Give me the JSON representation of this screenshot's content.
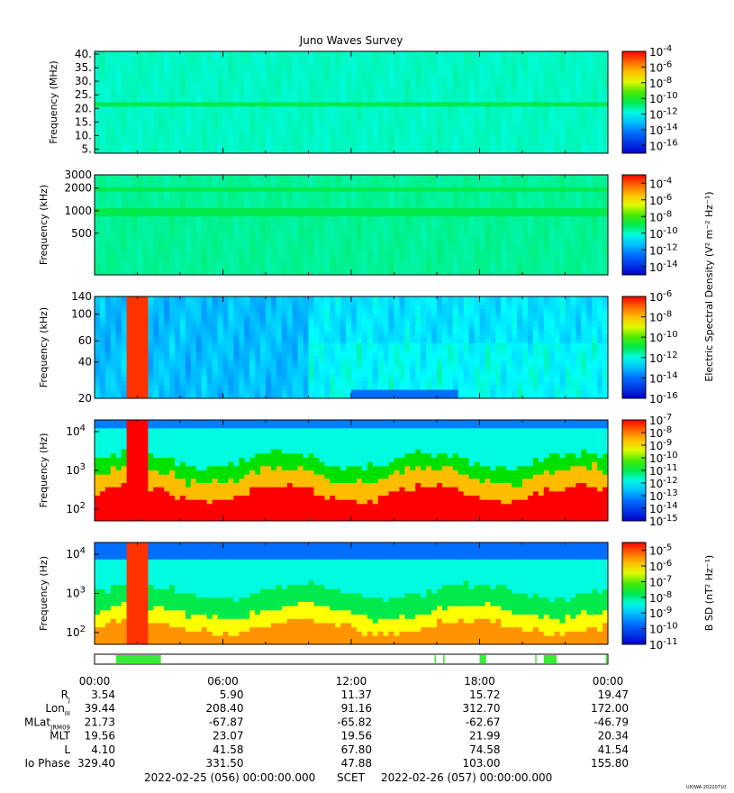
{
  "chart_data": {
    "type": "heatmap",
    "title": "Juno Waves Survey",
    "time_ticks": [
      "00:00",
      "06:00",
      "12:00",
      "18:00",
      "00:00"
    ],
    "panels": [
      {
        "ylabel": "Frequency (MHz)",
        "yscale": "linear",
        "ylim": [
          3.5,
          41
        ],
        "yticks": [
          "40.",
          "35.",
          "30.",
          "25.",
          "20.",
          "15.",
          "10.",
          "5."
        ],
        "ytick_values": [
          40,
          35,
          30,
          25,
          20,
          15,
          10,
          5
        ],
        "colorbar": {
          "exponents": [
            "-4",
            "-6",
            "-8",
            "-10",
            "-12",
            "-14",
            "-16"
          ],
          "range": [
            -17,
            -4
          ]
        }
      },
      {
        "ylabel": "Frequency (kHz)",
        "yscale": "log",
        "ylim": [
          140,
          3000
        ],
        "yticks": [
          "3000",
          "2000",
          "1000",
          "500"
        ],
        "ytick_values": [
          3000,
          2000,
          1000,
          500
        ],
        "colorbar": {
          "exponents": [
            "-4",
            "-6",
            "-8",
            "-10",
            "-12",
            "-14"
          ],
          "range": [
            -15,
            -3
          ]
        }
      },
      {
        "ylabel": "Frequency (kHz)",
        "yscale": "log",
        "ylim": [
          20,
          140
        ],
        "yticks": [
          "140",
          "100",
          "60",
          "40",
          "20"
        ],
        "ytick_values": [
          140,
          100,
          60,
          40,
          20
        ],
        "colorbar": {
          "exponents": [
            "-6",
            "-8",
            "-10",
            "-12",
            "-14",
            "-16"
          ],
          "range": [
            -16,
            -6
          ]
        }
      },
      {
        "ylabel": "Frequency (Hz)",
        "yscale": "log",
        "ylim": [
          50,
          20000
        ],
        "yticks": [
          {
            "base": "10",
            "exp": "4"
          },
          {
            "base": "10",
            "exp": "3"
          },
          {
            "base": "10",
            "exp": "2"
          }
        ],
        "ytick_values": [
          10000,
          1000,
          100
        ],
        "colorbar": {
          "exponents": [
            "-7",
            "-8",
            "-9",
            "-10",
            "-11",
            "-12",
            "-13",
            "-14",
            "-15"
          ],
          "range": [
            -15,
            -7
          ]
        }
      },
      {
        "ylabel": "Frequency (Hz)",
        "yscale": "log",
        "ylim": [
          50,
          20000
        ],
        "yticks": [
          {
            "base": "10",
            "exp": "4"
          },
          {
            "base": "10",
            "exp": "3"
          },
          {
            "base": "10",
            "exp": "2"
          }
        ],
        "ytick_values": [
          10000,
          1000,
          100
        ],
        "colorbar": {
          "exponents": [
            "-5",
            "-6",
            "-7",
            "-8",
            "-9",
            "-10",
            "-11"
          ],
          "range": [
            -11,
            -4.5
          ]
        }
      }
    ],
    "colorbar_labels": {
      "electric": "Electric Spectral Density (V² m⁻² Hz⁻¹)",
      "magnetic": "B SD (nT² Hz⁻¹)"
    },
    "mode_strip": {
      "color": "#33ee33",
      "segments_hours": [
        [
          1.0,
          3.1
        ],
        [
          15.9,
          15.95
        ],
        [
          16.3,
          16.35
        ],
        [
          18.0,
          18.3
        ],
        [
          20.6,
          20.65
        ],
        [
          21.0,
          21.6
        ],
        [
          23.9,
          23.95
        ]
      ]
    },
    "ephemeris": {
      "rows": [
        {
          "label": "R",
          "sub": "J",
          "values": [
            "3.54",
            "5.90",
            "11.37",
            "15.72",
            "19.47"
          ]
        },
        {
          "label": "Lon",
          "sub": "III",
          "values": [
            "39.44",
            "208.40",
            "91.16",
            "312.70",
            "172.00"
          ]
        },
        {
          "label": "MLat",
          "sub": "JRM09",
          "values": [
            "21.73",
            "-67.87",
            "-65.82",
            "-62.67",
            "-46.79"
          ]
        },
        {
          "label": "MLT",
          "sub": "",
          "values": [
            "19.56",
            "23.07",
            "19.56",
            "21.99",
            "20.34"
          ]
        },
        {
          "label": "L",
          "sub": "",
          "values": [
            "4.10",
            "41.58",
            "67.80",
            "74.58",
            "41.54"
          ]
        },
        {
          "label": "Io Phase",
          "sub": "",
          "values": [
            "329.40",
            "331.50",
            "47.88",
            "103.00",
            "155.80"
          ]
        }
      ]
    },
    "time_range": {
      "start": "2022-02-25 (056) 00:00:00.000",
      "scet": "SCET",
      "end": "2022-02-26 (057) 00:00:00.000"
    },
    "stamp": "UIOWA 20220710"
  }
}
